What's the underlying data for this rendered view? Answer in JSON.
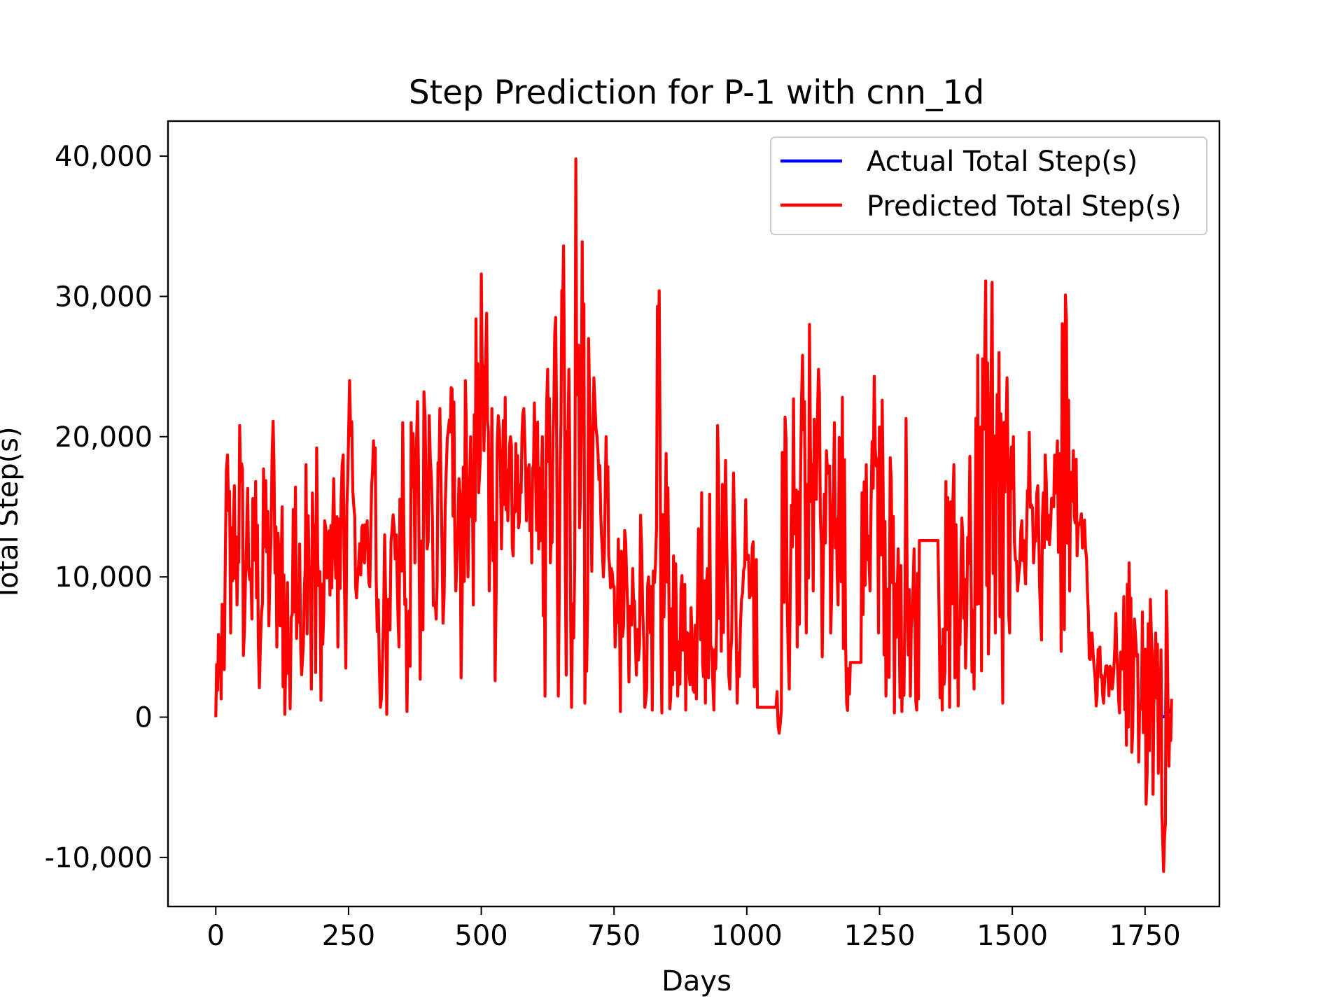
{
  "chart_data": {
    "type": "line",
    "title": "Step Prediction for P-1 with cnn_1d",
    "xlabel": "Days",
    "ylabel": "Total Step(s)",
    "xlim": [
      -90,
      1890
    ],
    "ylim": [
      -13500,
      42500
    ],
    "xticks": [
      0,
      250,
      500,
      750,
      1000,
      1250,
      1500,
      1750
    ],
    "xtick_labels": [
      "0",
      "250",
      "500",
      "750",
      "1000",
      "1250",
      "1500",
      "1750"
    ],
    "yticks": [
      -10000,
      0,
      10000,
      20000,
      30000,
      40000
    ],
    "ytick_labels": [
      "-10,000",
      "0",
      "10,000",
      "20,000",
      "30,000",
      "40,000"
    ],
    "grid": false,
    "legend_position": "upper right",
    "legend": [
      "Actual Total Step(s)",
      "Predicted Total Step(s)"
    ],
    "series_colors": [
      "#0000ff",
      "#ff0000"
    ],
    "anchors": [
      [
        0,
        0
      ],
      [
        5,
        5900
      ],
      [
        10,
        1300
      ],
      [
        18,
        11500
      ],
      [
        22,
        18700
      ],
      [
        28,
        6000
      ],
      [
        35,
        16500
      ],
      [
        40,
        8000
      ],
      [
        45,
        20800
      ],
      [
        52,
        4400
      ],
      [
        60,
        16300
      ],
      [
        68,
        7000
      ],
      [
        75,
        16800
      ],
      [
        82,
        2100
      ],
      [
        90,
        17700
      ],
      [
        100,
        6500
      ],
      [
        108,
        21100
      ],
      [
        115,
        5000
      ],
      [
        125,
        15000
      ],
      [
        130,
        200
      ],
      [
        135,
        9600
      ],
      [
        140,
        600
      ],
      [
        150,
        16400
      ],
      [
        160,
        4800
      ],
      [
        165,
        5200
      ],
      [
        170,
        18000
      ],
      [
        180,
        2000
      ],
      [
        190,
        19200
      ],
      [
        198,
        1200
      ],
      [
        205,
        14000
      ],
      [
        215,
        8700
      ],
      [
        222,
        17000
      ],
      [
        230,
        5000
      ],
      [
        240,
        18700
      ],
      [
        245,
        3500
      ],
      [
        252,
        24000
      ],
      [
        260,
        15000
      ],
      [
        265,
        8500
      ],
      [
        275,
        13500
      ],
      [
        280,
        11000
      ],
      [
        285,
        14000
      ],
      [
        290,
        9300
      ],
      [
        297,
        19700
      ],
      [
        302,
        10000
      ],
      [
        310,
        700
      ],
      [
        318,
        13000
      ],
      [
        322,
        200
      ],
      [
        330,
        12500
      ],
      [
        340,
        13000
      ],
      [
        345,
        5000
      ],
      [
        352,
        21000
      ],
      [
        360,
        400
      ],
      [
        368,
        21000
      ],
      [
        375,
        11000
      ],
      [
        380,
        22500
      ],
      [
        385,
        2700
      ],
      [
        392,
        23200
      ],
      [
        398,
        12000
      ],
      [
        402,
        21500
      ],
      [
        408,
        14000
      ],
      [
        415,
        7000
      ],
      [
        422,
        22000
      ],
      [
        428,
        6700
      ],
      [
        432,
        15000
      ],
      [
        438,
        20500
      ],
      [
        445,
        23400
      ],
      [
        452,
        9000
      ],
      [
        458,
        17000
      ],
      [
        462,
        2800
      ],
      [
        470,
        24000
      ],
      [
        475,
        10000
      ],
      [
        480,
        20000
      ],
      [
        485,
        8000
      ],
      [
        490,
        28400
      ],
      [
        495,
        16000
      ],
      [
        500,
        31600
      ],
      [
        505,
        19000
      ],
      [
        510,
        28800
      ],
      [
        515,
        9000
      ],
      [
        520,
        22000
      ],
      [
        526,
        2600
      ],
      [
        532,
        21500
      ],
      [
        538,
        12000
      ],
      [
        545,
        22800
      ],
      [
        550,
        14000
      ],
      [
        555,
        20000
      ],
      [
        560,
        11500
      ],
      [
        565,
        19500
      ],
      [
        570,
        13500
      ],
      [
        575,
        16000
      ],
      [
        580,
        22000
      ],
      [
        585,
        14000
      ],
      [
        590,
        18000
      ],
      [
        595,
        11000
      ],
      [
        600,
        22400
      ],
      [
        608,
        12000
      ],
      [
        615,
        20000
      ],
      [
        620,
        1500
      ],
      [
        625,
        24800
      ],
      [
        630,
        11000
      ],
      [
        635,
        20000
      ],
      [
        640,
        28500
      ],
      [
        645,
        1500
      ],
      [
        650,
        21000
      ],
      [
        655,
        33600
      ],
      [
        660,
        3000
      ],
      [
        665,
        24800
      ],
      [
        670,
        700
      ],
      [
        678,
        39800
      ],
      [
        685,
        13500
      ],
      [
        690,
        33900
      ],
      [
        695,
        1000
      ],
      [
        702,
        27000
      ],
      [
        708,
        10400
      ],
      [
        712,
        24200
      ],
      [
        718,
        20000
      ],
      [
        725,
        14500
      ],
      [
        730,
        10000
      ],
      [
        735,
        20000
      ],
      [
        740,
        11500
      ],
      [
        745,
        10600
      ],
      [
        752,
        5000
      ],
      [
        758,
        12700
      ],
      [
        762,
        400
      ],
      [
        770,
        13300
      ],
      [
        778,
        2500
      ],
      [
        785,
        10600
      ],
      [
        792,
        3000
      ],
      [
        800,
        14400
      ],
      [
        808,
        700
      ],
      [
        815,
        10000
      ],
      [
        822,
        500
      ],
      [
        830,
        13500
      ],
      [
        835,
        30400
      ],
      [
        840,
        300
      ],
      [
        848,
        18800
      ],
      [
        855,
        600
      ],
      [
        862,
        11500
      ],
      [
        870,
        1500
      ],
      [
        878,
        10100
      ],
      [
        885,
        500
      ],
      [
        895,
        7800
      ],
      [
        905,
        1300
      ],
      [
        915,
        16000
      ],
      [
        922,
        1000
      ],
      [
        930,
        15900
      ],
      [
        938,
        500
      ],
      [
        945,
        20800
      ],
      [
        952,
        4700
      ],
      [
        960,
        18300
      ],
      [
        968,
        2000
      ],
      [
        975,
        17400
      ],
      [
        982,
        1000
      ],
      [
        990,
        8400
      ],
      [
        998,
        15500
      ],
      [
        1005,
        8500
      ],
      [
        1012,
        12500
      ],
      [
        1020,
        700
      ],
      [
        1030,
        700
      ],
      [
        1040,
        700
      ],
      [
        1055,
        700
      ],
      [
        1065,
        500
      ],
      [
        1072,
        21400
      ],
      [
        1080,
        2000
      ],
      [
        1088,
        22700
      ],
      [
        1095,
        5000
      ],
      [
        1105,
        25800
      ],
      [
        1112,
        6000
      ],
      [
        1118,
        28000
      ],
      [
        1125,
        9000
      ],
      [
        1135,
        24800
      ],
      [
        1142,
        4300
      ],
      [
        1150,
        19000
      ],
      [
        1158,
        6000
      ],
      [
        1165,
        21000
      ],
      [
        1172,
        8000
      ],
      [
        1180,
        22800
      ],
      [
        1188,
        1000
      ],
      [
        1195,
        3900
      ],
      [
        1215,
        3900
      ],
      [
        1225,
        18000
      ],
      [
        1232,
        9000
      ],
      [
        1240,
        24300
      ],
      [
        1248,
        6000
      ],
      [
        1255,
        22600
      ],
      [
        1262,
        1500
      ],
      [
        1270,
        18500
      ],
      [
        1278,
        300
      ],
      [
        1285,
        12000
      ],
      [
        1292,
        400
      ],
      [
        1300,
        21300
      ],
      [
        1308,
        1500
      ],
      [
        1315,
        12000
      ],
      [
        1320,
        500
      ],
      [
        1325,
        12600
      ],
      [
        1360,
        12600
      ],
      [
        1368,
        500
      ],
      [
        1375,
        16800
      ],
      [
        1382,
        700
      ],
      [
        1390,
        18000
      ],
      [
        1398,
        800
      ],
      [
        1405,
        14200
      ],
      [
        1412,
        3500
      ],
      [
        1420,
        18600
      ],
      [
        1428,
        2000
      ],
      [
        1435,
        25800
      ],
      [
        1442,
        3300
      ],
      [
        1450,
        31100
      ],
      [
        1455,
        4500
      ],
      [
        1462,
        31000
      ],
      [
        1468,
        6000
      ],
      [
        1475,
        26000
      ],
      [
        1482,
        1000
      ],
      [
        1490,
        24200
      ],
      [
        1495,
        6000
      ],
      [
        1502,
        20000
      ],
      [
        1510,
        9000
      ],
      [
        1518,
        14000
      ],
      [
        1525,
        9500
      ],
      [
        1532,
        20300
      ],
      [
        1540,
        11000
      ],
      [
        1548,
        16500
      ],
      [
        1555,
        5500
      ],
      [
        1562,
        18700
      ],
      [
        1570,
        12300
      ],
      [
        1578,
        15000
      ],
      [
        1585,
        19700
      ],
      [
        1592,
        4700
      ],
      [
        1600,
        30100
      ],
      [
        1608,
        9000
      ],
      [
        1615,
        19000
      ],
      [
        1622,
        11500
      ],
      [
        1630,
        14500
      ],
      [
        1638,
        12000
      ],
      [
        1645,
        4200
      ],
      [
        1652,
        4600
      ],
      [
        1658,
        800
      ],
      [
        1665,
        5000
      ],
      [
        1672,
        1000
      ],
      [
        1680,
        3000
      ],
      [
        1688,
        2000
      ],
      [
        1695,
        7400
      ],
      [
        1702,
        300
      ],
      [
        1710,
        8600
      ],
      [
        1715,
        -2000
      ],
      [
        1720,
        11000
      ],
      [
        1725,
        -2500
      ],
      [
        1730,
        7000
      ],
      [
        1738,
        -3200
      ],
      [
        1745,
        7500
      ],
      [
        1752,
        -6200
      ],
      [
        1760,
        8400
      ],
      [
        1765,
        -5500
      ],
      [
        1770,
        6000
      ],
      [
        1775,
        -4000
      ],
      [
        1780,
        4800
      ],
      [
        1785,
        -11000
      ],
      [
        1790,
        9000
      ],
      [
        1795,
        -3500
      ],
      [
        1800,
        1300
      ]
    ],
    "blue_overrides": [
      [
        1690,
        1800
      ],
      [
        1700,
        600
      ],
      [
        1710,
        1500
      ],
      [
        1795,
        1100
      ],
      [
        1800,
        1400
      ]
    ]
  }
}
